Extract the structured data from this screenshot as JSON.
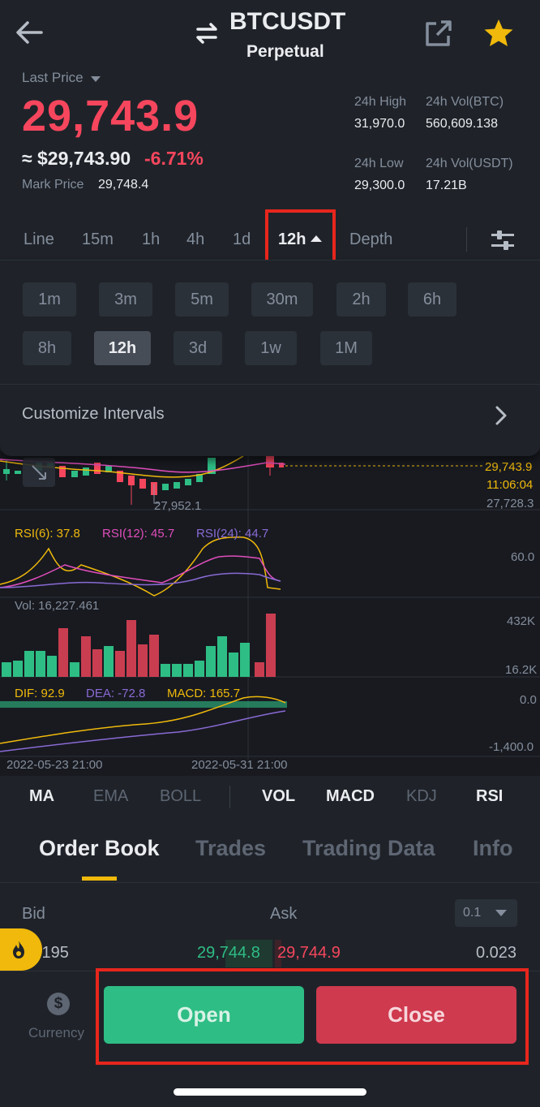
{
  "header": {
    "pair": "BTCUSDT",
    "contract_type": "Perpetual"
  },
  "price": {
    "last_price_label": "Last Price",
    "last_price": "29,743.9",
    "usd_price": "≈ $29,743.90",
    "change": "-6.71%",
    "mark_label": "Mark Price",
    "mark_value": "29,748.4"
  },
  "stats": {
    "high_label": "24h High",
    "high_value": "31,970.0",
    "vol_btc_label": "24h Vol(BTC)",
    "vol_btc_value": "560,609.138",
    "low_label": "24h Low",
    "low_value": "29,300.0",
    "vol_usdt_label": "24h Vol(USDT)",
    "vol_usdt_value": "17.21B"
  },
  "interval_tabs": [
    "Line",
    "15m",
    "1h",
    "4h",
    "1d",
    "12h",
    "Depth"
  ],
  "interval_panel": {
    "row1": [
      "1m",
      "3m",
      "5m",
      "30m",
      "2h",
      "6h"
    ],
    "row2": [
      "8h",
      "12h",
      "3d",
      "1w",
      "1M"
    ],
    "selected": "12h",
    "customize_label": "Customize Intervals"
  },
  "chart_labels": {
    "price_current": "29,743.9",
    "countdown": "11:06:04",
    "price_level": "27,728.3",
    "low_marker": "27,952.1",
    "rsi6": "RSI(6): 37.8",
    "rsi12": "RSI(12): 45.7",
    "rsi24": "RSI(24): 44.7",
    "rsi_axis": "60.0",
    "vol": "Vol: 16,227.461",
    "vol_max": "432K",
    "vol_min": "16.2K",
    "dif": "DIF: 92.9",
    "dea": "DEA: -72.8",
    "macd": "MACD: 165.7",
    "macd_zero": "0.0",
    "macd_min": "-1,400.0",
    "date1": "2022-05-23 21:00",
    "date2": "2022-05-31 21:00"
  },
  "indicator_tabs": {
    "ma": "MA",
    "ema": "EMA",
    "boll": "BOLL",
    "vol": "VOL",
    "macd": "MACD",
    "kdj": "KDJ",
    "rsi": "RSI"
  },
  "section_tabs": [
    "Order Book",
    "Trades",
    "Trading Data",
    "Info"
  ],
  "order_book": {
    "bid_label": "Bid",
    "ask_label": "Ask",
    "size_option": "0.1",
    "bid_qty": ".195",
    "bid_price": "29,744.8",
    "ask_price": "29,744.9",
    "ask_qty": "0.023"
  },
  "footer": {
    "currency_label": "Currency",
    "open_label": "Open",
    "close_label": "Close"
  },
  "colors": {
    "up": "#2ebd85",
    "down": "#f6465d",
    "accent": "#f0b90b",
    "highlight": "#e8261d"
  }
}
